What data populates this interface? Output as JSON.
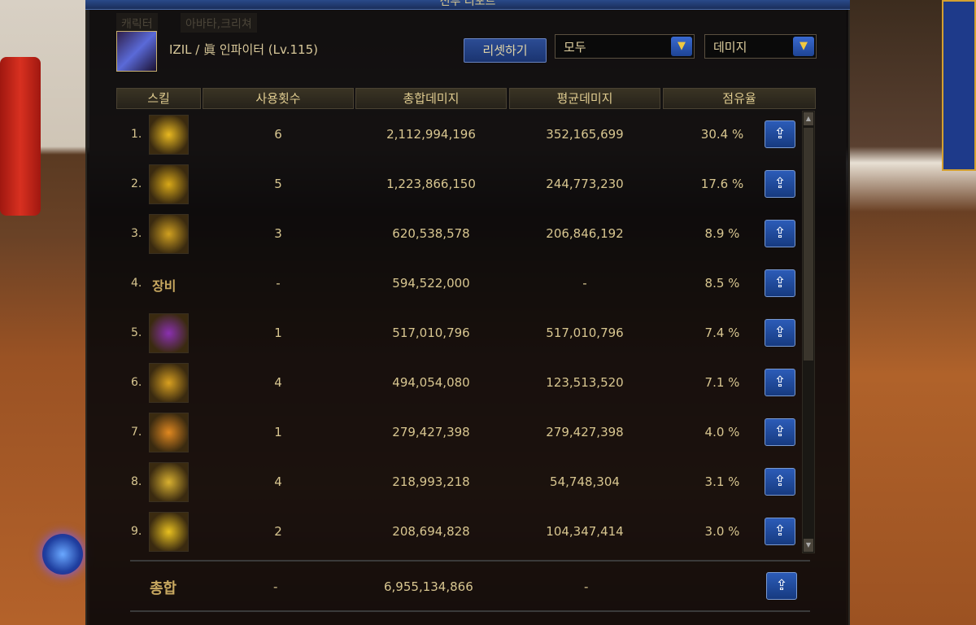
{
  "window": {
    "title": "전투 리포트"
  },
  "bg_tabs": [
    "캐릭터",
    "아바타,크리쳐"
  ],
  "character": {
    "name": "IZIL / 眞 인파이터 (Lv.115)"
  },
  "toolbar": {
    "reset_label": "리셋하기",
    "filter_select": "모두",
    "metric_select": "데미지"
  },
  "columns": [
    "스킬",
    "사용횟수",
    "총합데미지",
    "평균데미지",
    "점유율"
  ],
  "rows": [
    {
      "rank": "1.",
      "icon": "skill-icon",
      "color": "#e8b820",
      "count": "6",
      "total": "2,112,994,196",
      "avg": "352,165,699",
      "share": "30.4 %"
    },
    {
      "rank": "2.",
      "icon": "skill-icon",
      "color": "#d8a818",
      "count": "5",
      "total": "1,223,866,150",
      "avg": "244,773,230",
      "share": "17.6 %"
    },
    {
      "rank": "3.",
      "icon": "skill-icon",
      "color": "#d0a020",
      "count": "3",
      "total": "620,538,578",
      "avg": "206,846,192",
      "share": "8.9 %"
    },
    {
      "rank": "4.",
      "label": "장비",
      "count": "-",
      "total": "594,522,000",
      "avg": "-",
      "share": "8.5 %"
    },
    {
      "rank": "5.",
      "icon": "skill-icon",
      "color": "#8a30b0",
      "count": "1",
      "total": "517,010,796",
      "avg": "517,010,796",
      "share": "7.4 %"
    },
    {
      "rank": "6.",
      "icon": "skill-icon",
      "color": "#d8a020",
      "count": "4",
      "total": "494,054,080",
      "avg": "123,513,520",
      "share": "7.1 %"
    },
    {
      "rank": "7.",
      "icon": "skill-icon",
      "color": "#e08820",
      "count": "1",
      "total": "279,427,398",
      "avg": "279,427,398",
      "share": "4.0 %"
    },
    {
      "rank": "8.",
      "icon": "skill-icon",
      "color": "#d8b030",
      "count": "4",
      "total": "218,993,218",
      "avg": "54,748,304",
      "share": "3.1 %"
    },
    {
      "rank": "9.",
      "icon": "skill-icon",
      "color": "#e8c020",
      "count": "2",
      "total": "208,694,828",
      "avg": "104,347,414",
      "share": "3.0 %"
    }
  ],
  "total": {
    "label": "총합",
    "count": "-",
    "total": "6,955,134,866",
    "avg": "-"
  },
  "share_icon": "share-icon",
  "scroll_position": 0
}
